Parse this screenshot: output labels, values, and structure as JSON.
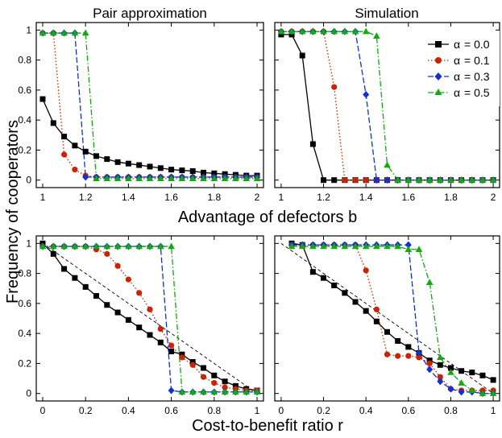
{
  "figure": {
    "ylabel": "Frequency of cooperators",
    "row_xlabels": [
      "Advantage of defectors b",
      "Cost-to-benefit ratio r"
    ],
    "column_titles": [
      "Pair approximation",
      "Simulation"
    ]
  },
  "legend": {
    "alpha_symbol": "α",
    "entries": [
      {
        "label": "= 0.0",
        "color": "#000000",
        "marker": "square",
        "dash": "solid"
      },
      {
        "label": "= 0.1",
        "color": "#cc2200",
        "marker": "circle",
        "dash": "dotted"
      },
      {
        "label": "= 0.3",
        "color": "#1530d0",
        "marker": "diamond",
        "dash": "dashed"
      },
      {
        "label": "= 0.5",
        "color": "#11aa11",
        "marker": "triangle",
        "dash": "dashdot"
      }
    ]
  },
  "chart_data": [
    {
      "type": "line",
      "panel": "top-left",
      "title": "Pair approximation",
      "xlabel": "Advantage of defectors b",
      "ylabel": "Frequency of cooperators",
      "xlim": [
        0.97,
        2.03
      ],
      "ylim": [
        -0.05,
        1.05
      ],
      "xticks": [
        "1",
        "1.2",
        "1.4",
        "1.6",
        "1.8",
        "2"
      ],
      "yticks": [
        "0",
        "0.2",
        "0.4",
        "0.6",
        "0.8",
        "1"
      ],
      "x": [
        1.0,
        1.05,
        1.1,
        1.15,
        1.2,
        1.25,
        1.3,
        1.35,
        1.4,
        1.45,
        1.5,
        1.55,
        1.6,
        1.65,
        1.7,
        1.75,
        1.8,
        1.85,
        1.9,
        1.95,
        2.0
      ],
      "series": [
        {
          "name": "α = 0.0",
          "values": [
            0.54,
            0.38,
            0.29,
            0.23,
            0.19,
            0.16,
            0.14,
            0.12,
            0.11,
            0.1,
            0.09,
            0.08,
            0.07,
            0.065,
            0.06,
            0.05,
            0.045,
            0.04,
            0.035,
            0.03,
            0.03
          ]
        },
        {
          "name": "α = 0.1",
          "values": [
            0.98,
            0.98,
            0.17,
            0.07,
            0.03,
            0.02,
            0.02,
            0.02,
            0.02,
            0.02,
            0.02,
            0.02,
            0.02,
            0.02,
            0.02,
            0.02,
            0.02,
            0.02,
            0.02,
            0.02,
            0.02
          ]
        },
        {
          "name": "α = 0.3",
          "values": [
            0.98,
            0.98,
            0.98,
            0.98,
            0.02,
            0.02,
            0.02,
            0.02,
            0.02,
            0.02,
            0.02,
            0.02,
            0.02,
            0.02,
            0.02,
            0.02,
            0.02,
            0.02,
            0.02,
            0.02,
            0.02
          ]
        },
        {
          "name": "α = 0.5",
          "values": [
            0.98,
            0.98,
            0.98,
            0.98,
            0.98,
            0.01,
            0.01,
            0.01,
            0.01,
            0.01,
            0.01,
            0.01,
            0.01,
            0.01,
            0.01,
            0.01,
            0.01,
            0.01,
            0.01,
            0.01,
            0.01
          ]
        }
      ]
    },
    {
      "type": "line",
      "panel": "top-right",
      "title": "Simulation",
      "xlabel": "Advantage of defectors b",
      "ylabel": "",
      "xlim": [
        0.97,
        2.03
      ],
      "ylim": [
        -0.05,
        1.05
      ],
      "xticks": [
        "1",
        "1.2",
        "1.4",
        "1.6",
        "1.8",
        "2"
      ],
      "yticks": [],
      "x": [
        1.0,
        1.05,
        1.1,
        1.15,
        1.2,
        1.25,
        1.3,
        1.35,
        1.4,
        1.45,
        1.5,
        1.55,
        1.6,
        1.65,
        1.7,
        1.75,
        1.8,
        1.85,
        1.9,
        1.95,
        2.0
      ],
      "series": [
        {
          "name": "α = 0.0",
          "values": [
            0.97,
            0.97,
            0.83,
            0.24,
            0.0,
            0.0,
            0.0,
            0.0,
            0.0,
            0.0,
            0.0,
            0.0,
            0.0,
            0.0,
            0.0,
            0.0,
            0.0,
            0.0,
            0.0,
            0.0,
            0.0
          ]
        },
        {
          "name": "α = 0.1",
          "values": [
            0.99,
            0.99,
            0.99,
            0.99,
            0.99,
            0.62,
            0.0,
            0.0,
            0.0,
            0.0,
            0.0,
            0.0,
            0.0,
            0.0,
            0.0,
            0.0,
            0.0,
            0.0,
            0.0,
            0.0,
            0.0
          ]
        },
        {
          "name": "α = 0.3",
          "values": [
            0.99,
            0.99,
            0.99,
            0.99,
            0.99,
            0.99,
            0.99,
            0.99,
            0.57,
            0.0,
            0.0,
            0.0,
            0.0,
            0.0,
            0.0,
            0.0,
            0.0,
            0.0,
            0.0,
            0.0,
            0.0
          ]
        },
        {
          "name": "α = 0.5",
          "values": [
            0.99,
            0.99,
            0.99,
            0.99,
            0.99,
            0.99,
            0.99,
            0.99,
            0.99,
            0.96,
            0.1,
            0.0,
            0.0,
            0.0,
            0.0,
            0.0,
            0.0,
            0.0,
            0.0,
            0.0,
            0.0
          ]
        }
      ]
    },
    {
      "type": "line",
      "panel": "bottom-left",
      "title": "",
      "xlabel": "Cost-to-benefit ratio r",
      "ylabel": "Frequency of cooperators",
      "xlim": [
        -0.03,
        1.03
      ],
      "ylim": [
        -0.05,
        1.05
      ],
      "xticks": [
        "0",
        "0.2",
        "0.4",
        "0.6",
        "0.8",
        "1"
      ],
      "yticks": [
        "0",
        "0.2",
        "0.4",
        "0.6",
        "0.8",
        "1"
      ],
      "reference_line": {
        "x": [
          0.0,
          1.0
        ],
        "y": [
          1.0,
          0.0
        ],
        "style": "dashed"
      },
      "x": [
        0.0,
        0.05,
        0.1,
        0.15,
        0.2,
        0.25,
        0.3,
        0.35,
        0.4,
        0.45,
        0.5,
        0.55,
        0.6,
        0.65,
        0.7,
        0.75,
        0.8,
        0.85,
        0.9,
        0.95,
        1.0
      ],
      "series": [
        {
          "name": "α = 0.0",
          "values": [
            1.0,
            0.93,
            0.83,
            0.77,
            0.71,
            0.65,
            0.59,
            0.54,
            0.49,
            0.44,
            0.39,
            0.34,
            0.28,
            0.26,
            0.21,
            0.17,
            0.12,
            0.08,
            0.05,
            0.03,
            0.02
          ]
        },
        {
          "name": "α = 0.1",
          "values": [
            0.98,
            0.98,
            0.98,
            0.98,
            0.98,
            0.96,
            0.93,
            0.85,
            0.76,
            0.67,
            0.56,
            0.43,
            0.32,
            0.24,
            0.19,
            0.11,
            0.07,
            0.04,
            0.03,
            0.02,
            0.02
          ]
        },
        {
          "name": "α = 0.3",
          "values": [
            0.98,
            0.98,
            0.98,
            0.98,
            0.98,
            0.98,
            0.98,
            0.98,
            0.98,
            0.98,
            0.98,
            0.98,
            0.02,
            0.01,
            0.01,
            0.01,
            0.01,
            0.01,
            0.01,
            0.01,
            0.01
          ]
        },
        {
          "name": "α = 0.5",
          "values": [
            0.98,
            0.98,
            0.98,
            0.98,
            0.98,
            0.98,
            0.98,
            0.98,
            0.98,
            0.98,
            0.98,
            0.98,
            0.98,
            0.01,
            0.01,
            0.01,
            0.01,
            0.01,
            0.01,
            0.01,
            0.01
          ]
        }
      ]
    },
    {
      "type": "line",
      "panel": "bottom-right",
      "title": "",
      "xlabel": "Cost-to-benefit ratio r",
      "ylabel": "",
      "xlim": [
        -0.03,
        1.03
      ],
      "ylim": [
        -0.05,
        1.05
      ],
      "xticks": [
        "0",
        "0.2",
        "0.4",
        "0.6",
        "0.8",
        "1"
      ],
      "yticks": [],
      "reference_line": {
        "x": [
          0.0,
          1.0
        ],
        "y": [
          1.0,
          0.0
        ],
        "style": "dashed"
      },
      "x": [
        0.05,
        0.1,
        0.15,
        0.2,
        0.25,
        0.3,
        0.35,
        0.4,
        0.45,
        0.5,
        0.55,
        0.6,
        0.65,
        0.7,
        0.75,
        0.8,
        0.85,
        0.9,
        0.95,
        1.0
      ],
      "series": [
        {
          "name": "α = 0.0",
          "values": [
            1.0,
            0.99,
            0.81,
            0.77,
            0.72,
            0.67,
            0.61,
            0.55,
            0.48,
            0.41,
            0.35,
            0.31,
            0.27,
            0.22,
            0.19,
            0.17,
            0.15,
            0.14,
            0.12,
            0.09
          ]
        },
        {
          "name": "α = 0.1",
          "values": [
            0.99,
            0.99,
            0.99,
            0.99,
            0.99,
            0.99,
            0.99,
            0.82,
            0.56,
            0.26,
            0.25,
            0.25,
            0.24,
            0.2,
            0.11,
            0.03,
            0.02,
            0.02,
            0.02,
            0.02
          ]
        },
        {
          "name": "α = 0.3",
          "values": [
            0.99,
            0.99,
            0.99,
            0.99,
            0.99,
            0.99,
            0.99,
            0.99,
            0.99,
            0.99,
            0.99,
            0.99,
            0.27,
            0.16,
            0.08,
            0.03,
            0.01,
            0.01,
            0.0,
            0.0
          ]
        },
        {
          "name": "α = 0.5",
          "values": [
            0.98,
            0.98,
            0.98,
            0.98,
            0.98,
            0.98,
            0.98,
            0.98,
            0.98,
            0.98,
            0.98,
            0.96,
            0.96,
            0.74,
            0.24,
            0.14,
            0.07,
            0.02,
            0.0,
            0.0
          ]
        }
      ]
    }
  ]
}
